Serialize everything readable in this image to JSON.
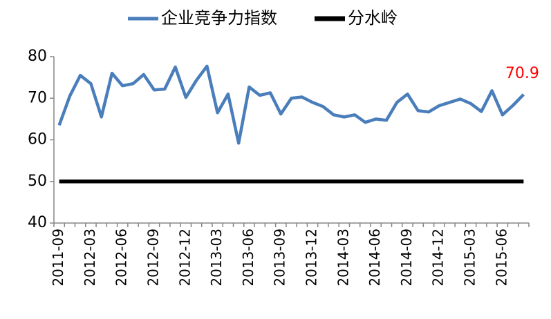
{
  "chart_data": {
    "type": "line",
    "categories": [
      "2011-09",
      null,
      null,
      "2012-03",
      null,
      null,
      "2012-06",
      null,
      null,
      "2012-09",
      null,
      null,
      "2012-12",
      null,
      null,
      "2013-03",
      null,
      null,
      "2013-06",
      null,
      null,
      "2013-09",
      null,
      null,
      "2013-12",
      null,
      null,
      "2014-03",
      null,
      null,
      "2014-06",
      null,
      null,
      "2014-09",
      null,
      null,
      "2014-12",
      null,
      null,
      "2015-03",
      null,
      null,
      "2015-06",
      null,
      null
    ],
    "series": [
      {
        "name": "企业竞争力指数",
        "color": "#4a7ebb",
        "values": [
          63.5,
          70.5,
          75.5,
          73.5,
          65.5,
          76,
          73,
          73.5,
          75.7,
          72,
          72.2,
          77.5,
          70.2,
          74.3,
          77.7,
          66.5,
          71,
          59.2,
          72.7,
          70.7,
          71.3,
          66.2,
          70,
          70.3,
          69,
          68,
          66,
          65.5,
          66,
          64.2,
          65,
          64.7,
          69,
          71,
          67,
          66.7,
          68.2,
          69,
          69.8,
          68.7,
          66.8,
          71.8,
          66,
          68.3,
          70.9
        ]
      },
      {
        "name": "分水岭",
        "color": "#000000",
        "values": [
          50,
          50,
          50,
          50,
          50,
          50,
          50,
          50,
          50,
          50,
          50,
          50,
          50,
          50,
          50,
          50,
          50,
          50,
          50,
          50,
          50,
          50,
          50,
          50,
          50,
          50,
          50,
          50,
          50,
          50,
          50,
          50,
          50,
          50,
          50,
          50,
          50,
          50,
          50,
          50,
          50,
          50,
          50,
          50,
          50
        ]
      }
    ],
    "label_color": "#ff0000",
    "ylim": [
      40,
      80
    ],
    "yticks": [
      40,
      50,
      60,
      70,
      80
    ],
    "grid": false
  }
}
